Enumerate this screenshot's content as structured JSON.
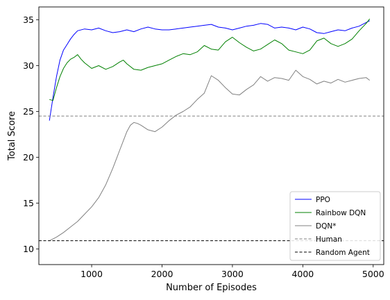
{
  "chart_data": {
    "type": "line",
    "title": "",
    "xlabel": "Number of Episodes",
    "ylabel": "Total Score",
    "xlim": [
      250,
      5150
    ],
    "ylim": [
      8.3,
      36.4
    ],
    "x_ticks": [
      1000,
      2000,
      3000,
      4000,
      5000
    ],
    "y_ticks": [
      10,
      15,
      20,
      25,
      30,
      35
    ],
    "grid": false,
    "legend_position": "lower-right",
    "series": [
      {
        "name": "PPO",
        "color": "#0000ff",
        "x": [
          400,
          450,
          500,
          550,
          600,
          650,
          700,
          750,
          800,
          900,
          1000,
          1100,
          1200,
          1300,
          1400,
          1500,
          1600,
          1700,
          1800,
          1900,
          2000,
          2100,
          2200,
          2300,
          2400,
          2500,
          2600,
          2700,
          2800,
          2900,
          3000,
          3100,
          3200,
          3300,
          3400,
          3500,
          3600,
          3700,
          3800,
          3900,
          4000,
          4100,
          4200,
          4300,
          4400,
          4500,
          4600,
          4700,
          4800,
          4900,
          4950
        ],
        "y": [
          24.0,
          26.5,
          28.8,
          30.6,
          31.7,
          32.3,
          32.9,
          33.4,
          33.8,
          34.0,
          33.9,
          34.1,
          33.8,
          33.6,
          33.7,
          33.9,
          33.7,
          34.0,
          34.2,
          34.0,
          33.9,
          33.9,
          34.0,
          34.1,
          34.2,
          34.3,
          34.4,
          34.5,
          34.2,
          34.1,
          33.9,
          34.1,
          34.3,
          34.4,
          34.6,
          34.5,
          34.1,
          34.2,
          34.1,
          33.9,
          34.2,
          34.0,
          33.6,
          33.5,
          33.7,
          33.9,
          33.8,
          34.1,
          34.3,
          34.7,
          34.9
        ]
      },
      {
        "name": "Rainbow DQN",
        "color": "#008000",
        "x": [
          400,
          450,
          500,
          550,
          600,
          650,
          700,
          750,
          800,
          850,
          900,
          1000,
          1100,
          1200,
          1300,
          1400,
          1450,
          1500,
          1600,
          1700,
          1800,
          1900,
          2000,
          2100,
          2200,
          2300,
          2400,
          2500,
          2600,
          2700,
          2800,
          2900,
          3000,
          3100,
          3200,
          3300,
          3400,
          3500,
          3600,
          3700,
          3800,
          3900,
          4000,
          4100,
          4200,
          4300,
          4400,
          4500,
          4600,
          4700,
          4800,
          4900,
          4950
        ],
        "y": [
          26.3,
          26.2,
          27.6,
          28.8,
          29.7,
          30.3,
          30.7,
          30.9,
          31.2,
          30.7,
          30.3,
          29.7,
          30.0,
          29.6,
          29.9,
          30.4,
          30.6,
          30.2,
          29.6,
          29.5,
          29.8,
          30.0,
          30.2,
          30.6,
          31.0,
          31.3,
          31.2,
          31.5,
          32.2,
          31.8,
          31.7,
          32.6,
          33.1,
          32.5,
          32.0,
          31.6,
          31.8,
          32.3,
          32.8,
          32.4,
          31.7,
          31.5,
          31.3,
          31.7,
          32.7,
          33.0,
          32.4,
          32.1,
          32.4,
          32.9,
          33.8,
          34.6,
          35.1
        ]
      },
      {
        "name": "DQN*",
        "color": "#808080",
        "x": [
          400,
          500,
          600,
          700,
          800,
          900,
          1000,
          1100,
          1200,
          1300,
          1350,
          1400,
          1450,
          1500,
          1550,
          1600,
          1650,
          1700,
          1800,
          1900,
          2000,
          2100,
          2200,
          2300,
          2400,
          2500,
          2600,
          2700,
          2800,
          2900,
          3000,
          3100,
          3200,
          3300,
          3400,
          3500,
          3600,
          3700,
          3800,
          3900,
          4000,
          4100,
          4200,
          4300,
          4400,
          4500,
          4600,
          4700,
          4800,
          4900,
          4950
        ],
        "y": [
          10.9,
          11.3,
          11.8,
          12.4,
          13.0,
          13.8,
          14.6,
          15.6,
          17.0,
          18.8,
          19.8,
          20.8,
          21.8,
          22.8,
          23.5,
          23.8,
          23.7,
          23.5,
          23.0,
          22.8,
          23.3,
          24.0,
          24.6,
          25.0,
          25.5,
          26.3,
          27.0,
          28.9,
          28.4,
          27.6,
          26.9,
          26.8,
          27.4,
          27.9,
          28.8,
          28.3,
          28.7,
          28.6,
          28.4,
          29.5,
          28.8,
          28.5,
          28.0,
          28.3,
          28.1,
          28.5,
          28.2,
          28.4,
          28.6,
          28.7,
          28.4
        ]
      },
      {
        "name": "Human",
        "color": "#808080",
        "style": "dashed",
        "y_constant": 24.5
      },
      {
        "name": "Random Agent",
        "color": "#000000",
        "style": "dashed",
        "y_constant": 10.9
      }
    ]
  }
}
